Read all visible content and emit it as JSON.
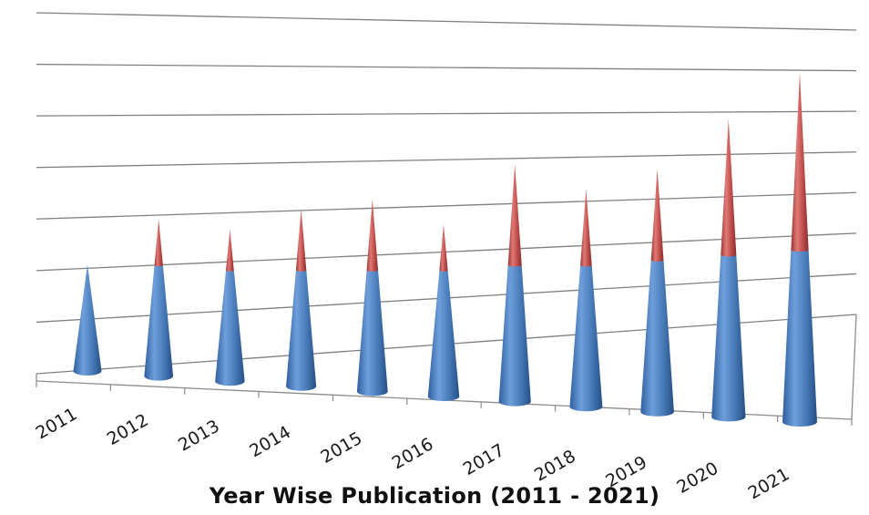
{
  "chart_data": {
    "type": "bar",
    "style": "3d-cone-stacked",
    "title": "Year Wise Publication (2011 - 2021)",
    "xlabel": "",
    "ylabel": "",
    "categories": [
      "2011",
      "2012",
      "2013",
      "2014",
      "2015",
      "2016",
      "2017",
      "2018",
      "2019",
      "2020",
      "2021"
    ],
    "series": [
      {
        "color": "#4a7ebb",
        "values": [
          2.1,
          2.2,
          2.2,
          2.3,
          2.4,
          2.5,
          2.7,
          2.8,
          3.0,
          3.2,
          3.4
        ]
      },
      {
        "color": "#c0504d",
        "values": [
          0.0,
          0.9,
          0.8,
          1.2,
          1.4,
          0.9,
          2.0,
          1.5,
          1.8,
          2.7,
          3.5
        ]
      }
    ],
    "ylim": [
      0,
      7
    ],
    "grid": true,
    "legend": "none"
  }
}
